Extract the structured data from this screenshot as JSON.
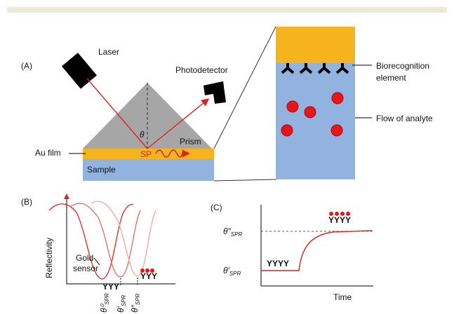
{
  "panel_a": {
    "label": "(A)",
    "laser": "Laser",
    "photodetector": "Photodetector",
    "angle": "θ",
    "prism": "Prism",
    "au_film": "Au film",
    "sp": "SP",
    "sample": "Sample",
    "biorecognition": [
      "Biorecognition",
      "element"
    ],
    "flow": "Flow of analyte"
  },
  "panel_b": {
    "label": "(B)",
    "y_axis": "Reflectivity",
    "gold_sensor": [
      "Gold",
      "sensor"
    ],
    "angles": [
      {
        "symbol": "θ⁰",
        "sub": "SPR"
      },
      {
        "symbol": "θ′",
        "sub": "SPR"
      },
      {
        "symbol": "θ″",
        "sub": "SPR"
      }
    ]
  },
  "panel_c": {
    "label": "(C)",
    "x_axis": "Time",
    "levels": [
      {
        "symbol": "θ″",
        "sub": "SPR"
      },
      {
        "symbol": "θ′",
        "sub": "SPR"
      }
    ]
  }
}
